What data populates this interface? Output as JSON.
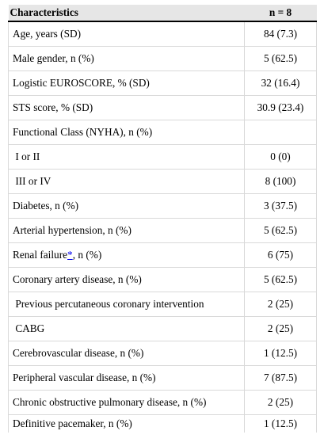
{
  "table": {
    "headers": [
      "Characteristics",
      "n = 8"
    ],
    "rows": [
      {
        "label": "Age, years (SD)",
        "value": "84 (7.3)"
      },
      {
        "label": "Male gender, n (%)",
        "value": "5 (62.5)"
      },
      {
        "label": "Logistic EUROSCORE, % (SD)",
        "value": "32 (16.4)"
      },
      {
        "label": "STS score, % (SD)",
        "value": "30.9 (23.4)"
      },
      {
        "label": "Functional Class (NYHA), n (%)",
        "value": ""
      },
      {
        "label": " I or II",
        "value": "0 (0)"
      },
      {
        "label": " III or IV",
        "value": "8 (100)"
      },
      {
        "label": "Diabetes, n (%)",
        "value": "3 (37.5)"
      },
      {
        "label": "Arterial hypertension, n (%)",
        "value": "5 (62.5)"
      },
      {
        "label_prefix": "Renal failure",
        "footnote": "*",
        "label_suffix": ", n (%)",
        "value": "6 (75)"
      },
      {
        "label": "Coronary artery disease, n (%)",
        "value": "5 (62.5)"
      },
      {
        "label": " Previous percutaneous coronary intervention",
        "value": "2 (25)"
      },
      {
        "label": " CABG",
        "value": "2 (25)"
      },
      {
        "label": "Cerebrovascular disease, n (%)",
        "value": "1 (12.5)"
      },
      {
        "label": "Peripheral vascular disease, n (%)",
        "value": "7 (87.5)"
      },
      {
        "label": "Chronic obstructive pulmonary disease, n (%)",
        "value": "2 (25)"
      },
      {
        "label": "Definitive pacemaker, n (%)",
        "value": "1 (12.5)"
      }
    ]
  }
}
